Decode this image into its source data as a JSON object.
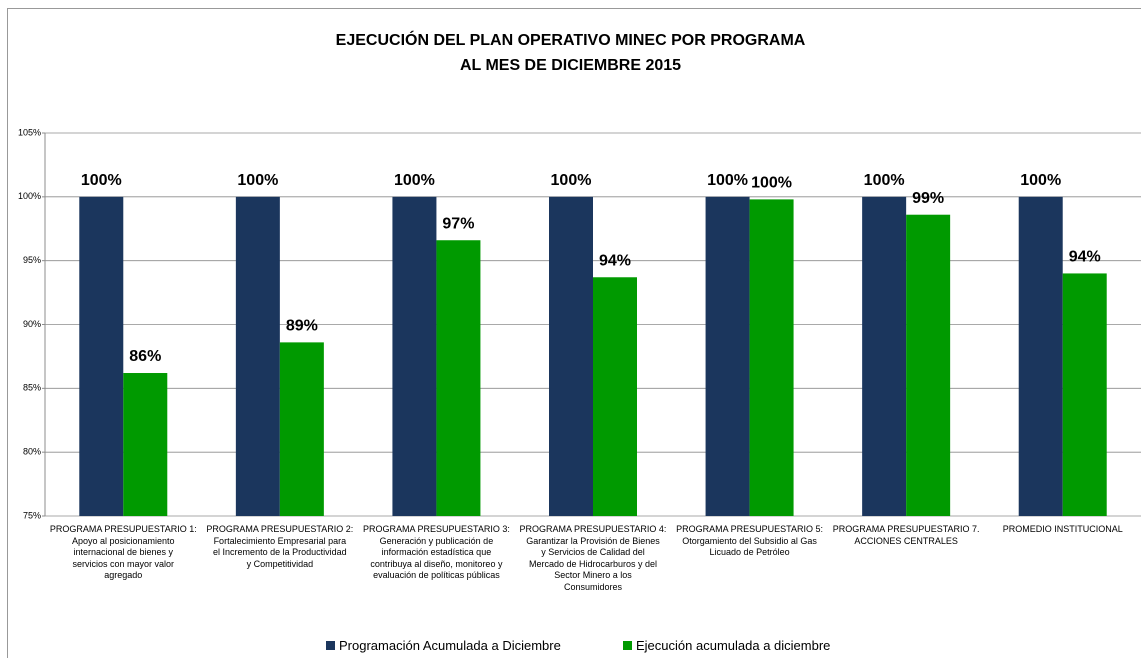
{
  "chart_data": {
    "type": "bar",
    "title": "EJECUCIÓN  DEL PLAN OPERATIVO MINEC POR PROGRAMA\nAL MES DE DICIEMBRE 2015",
    "categories": [
      "PROGRAMA PRESUPUESTARIO 1:\nApoyo al posicionamiento\ninternacional  de bienes y\nservicios con mayor valor\nagregado",
      "PROGRAMA PRESUPUESTARIO 2:\nFortalecimiento Empresarial para\nel Incremento de la Productividad\ny Competitividad",
      "PROGRAMA PRESUPUESTARIO 3:\nGeneración y publicación de\ninformación estadística que\ncontribuya al diseño, monitoreo y\nevaluación de políticas públicas",
      "PROGRAMA PRESUPUESTARIO 4:\nGarantizar la Provisión de Bienes\ny Servicios de Calidad del\nMercado de Hidrocarburos y del\nSector Minero a los\nConsumidores",
      "PROGRAMA PRESUPUESTARIO 5:\nOtorgamiento del Subsidio al Gas\nLicuado de Petróleo",
      "PROGRAMA PRESUPUESTARIO 7.\nACCIONES CENTRALES",
      "PROMEDIO INSTITUCIONAL"
    ],
    "series": [
      {
        "name": "Programación Acumulada a Diciembre",
        "color": "#1b365d",
        "values": [
          100,
          100,
          100,
          100,
          100,
          100,
          100
        ],
        "value_labels": [
          "100%",
          "100%",
          "100%",
          "100%",
          "100%",
          "100%",
          "100%"
        ]
      },
      {
        "name": "Ejecución acumulada a diciembre",
        "color": "#009a00",
        "values": [
          86.2,
          88.6,
          96.6,
          93.7,
          99.8,
          98.6,
          94.0
        ],
        "value_labels": [
          "86%",
          "89%",
          "97%",
          "94%",
          "100%",
          "99%",
          "94%"
        ]
      }
    ],
    "ylim": [
      75,
      105
    ],
    "yticks": [
      {
        "value": 75,
        "label": "75%"
      },
      {
        "value": 80,
        "label": "80%"
      },
      {
        "value": 85,
        "label": "85%"
      },
      {
        "value": 90,
        "label": "90%"
      },
      {
        "value": 95,
        "label": "95%"
      },
      {
        "value": 100,
        "label": "100%"
      },
      {
        "value": 105,
        "label": "105%"
      }
    ],
    "grid": true,
    "legend": "bottom"
  }
}
